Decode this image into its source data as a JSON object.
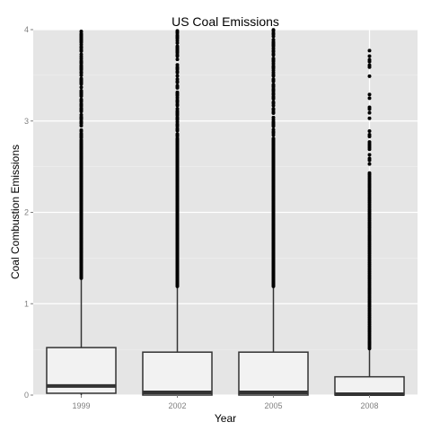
{
  "chart_data": {
    "type": "boxplot",
    "title": "US Coal Emissions",
    "xlabel": "Year",
    "ylabel": "Coal Combustion Emissions",
    "categories": [
      "1999",
      "2002",
      "2005",
      "2008"
    ],
    "ylim": [
      0,
      4
    ],
    "yticks": [
      0,
      1,
      2,
      3,
      4
    ],
    "ytick_labels": [
      "0",
      "1",
      "2",
      "3",
      "4"
    ],
    "grid": true,
    "colors": {
      "panel_background": "#e5e5e5",
      "grid_major": "#ffffff",
      "grid_minor": "#f2f2f2",
      "box_fill": "#f2f2f2",
      "box_line": "#333333",
      "outlier": "#000000"
    },
    "boxes": [
      {
        "category": "1999",
        "q1": 0.02,
        "median": 0.1,
        "q3": 0.52,
        "whisker_low": 0,
        "whisker_high": 1.27,
        "outliers_from": 1.27,
        "outliers_to": 4.0,
        "outlier_density": "dense"
      },
      {
        "category": "2002",
        "q1": 0.0,
        "median": 0.03,
        "q3": 0.47,
        "whisker_low": 0,
        "whisker_high": 1.18,
        "outliers_from": 1.18,
        "outliers_to": 4.0,
        "outlier_density": "dense"
      },
      {
        "category": "2005",
        "q1": 0.0,
        "median": 0.03,
        "q3": 0.47,
        "whisker_low": 0,
        "whisker_high": 1.18,
        "outliers_from": 1.18,
        "outliers_to": 4.0,
        "outlier_density": "dense"
      },
      {
        "category": "2008",
        "q1": 0.0,
        "median": 0.01,
        "q3": 0.2,
        "whisker_low": 0,
        "whisker_high": 0.5,
        "outliers_from": 0.5,
        "outliers_to": 3.85,
        "outlier_density": "sparse-upper"
      }
    ]
  }
}
